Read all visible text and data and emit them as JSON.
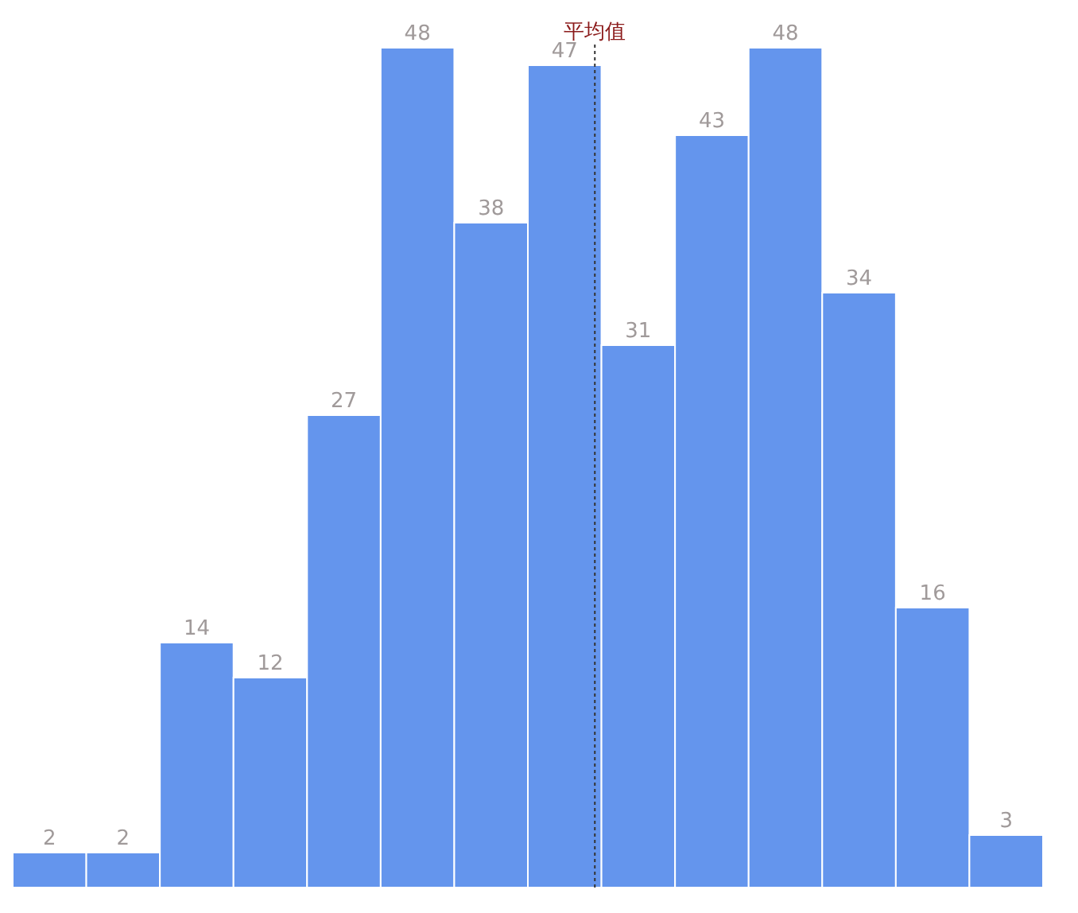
{
  "chart_data": {
    "type": "bar",
    "categories": [
      null,
      null,
      null,
      null,
      null,
      null,
      null,
      null,
      null,
      null,
      null,
      null,
      null,
      null
    ],
    "values": [
      2,
      2,
      14,
      12,
      27,
      48,
      38,
      47,
      31,
      43,
      48,
      34,
      16,
      3
    ],
    "color": "#6495ed",
    "data_labels": true,
    "annotations": [
      "平均值"
    ]
  }
}
